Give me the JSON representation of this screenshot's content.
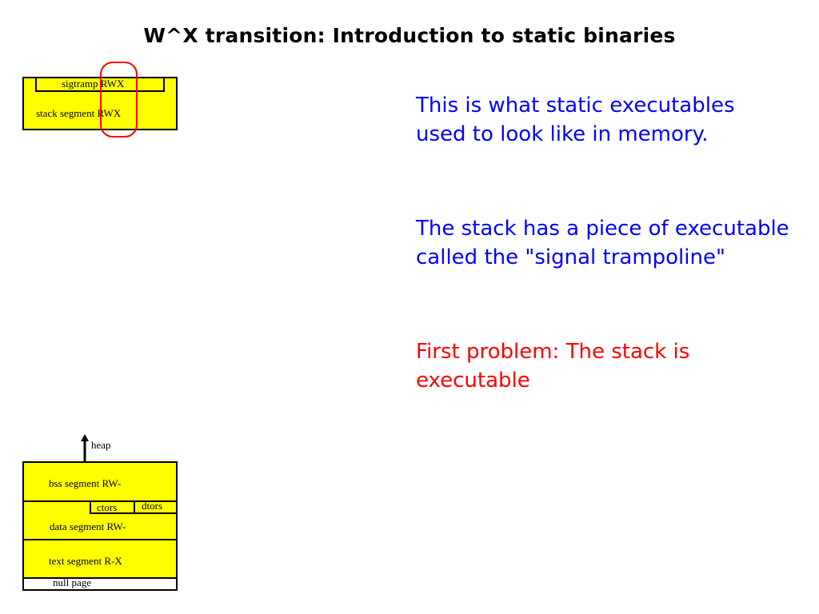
{
  "title": "W^X transition: Introduction to static binaries",
  "notes": [
    {
      "text": "This is what static executables\nused to look like in memory.",
      "color": "#0000ff"
    },
    {
      "text": "The stack has a piece of executable\ncalled the \"signal trampoline\"",
      "color": "#0000ff"
    },
    {
      "text": "First problem: The stack is\nexecutable",
      "color": "#ff0000"
    }
  ],
  "stack_diagram": {
    "sigtramp": "sigtramp RWX",
    "stack_segment": "stack segment RWX",
    "highlight_color": "#ff0000"
  },
  "binary_diagram": {
    "heap": "heap",
    "bss": "bss segment RW-",
    "ctors": "ctors",
    "dtors": "dtors",
    "data": "data segment RW-",
    "text": "text segment  R-X",
    "null_page": "null page",
    "segment_color": "#ffff00"
  }
}
